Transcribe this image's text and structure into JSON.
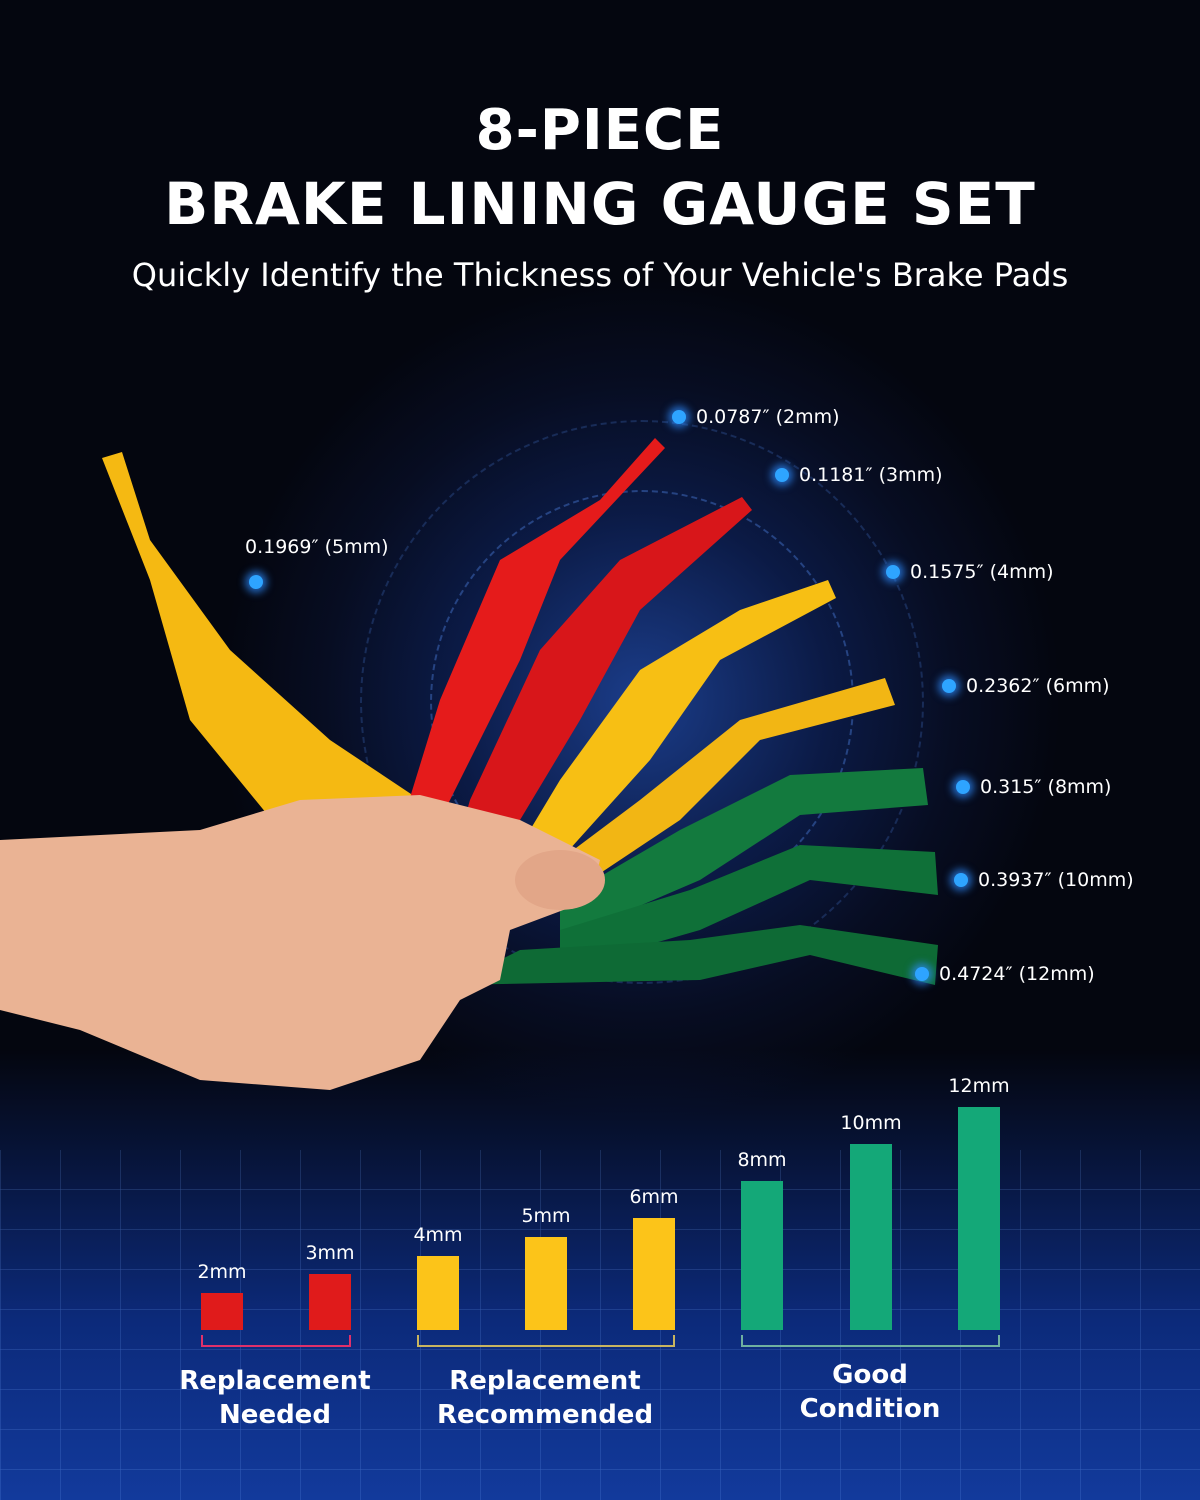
{
  "header": {
    "title_line1": "8-PIECE",
    "title_line2": "BRAKE LINING GAUGE SET",
    "subtitle": "Quickly Identify the Thickness of Your Vehicle's Brake Pads"
  },
  "callouts": [
    {
      "text": "0.0787″ (2mm)"
    },
    {
      "text": "0.1181″ (3mm)"
    },
    {
      "text": "0.1575″ (4mm)"
    },
    {
      "text": "0.2362″ (6mm)"
    },
    {
      "text": "0.315″ (8mm)"
    },
    {
      "text": "0.3937″ (10mm)"
    },
    {
      "text": "0.4724″ (12mm)"
    },
    {
      "text": "0.1969″ (5mm)"
    }
  ],
  "chart_data": {
    "type": "bar",
    "categories": [
      "2mm",
      "3mm",
      "4mm",
      "5mm",
      "6mm",
      "8mm",
      "10mm",
      "12mm"
    ],
    "values": [
      2,
      3,
      4,
      5,
      6,
      8,
      10,
      12
    ],
    "colors": [
      "#e01b1b",
      "#e01b1b",
      "#fcc419",
      "#fcc419",
      "#fcc419",
      "#14a878",
      "#14a878",
      "#14a878"
    ],
    "groups": [
      {
        "line1": "Replacement",
        "line2": "Needed",
        "color": "#e0306a"
      },
      {
        "line1": "Replacement",
        "line2": "Recommended",
        "color": "#c8b560"
      },
      {
        "line1": "Good",
        "line2": "Condition",
        "color": "#6fb0a0"
      }
    ]
  }
}
